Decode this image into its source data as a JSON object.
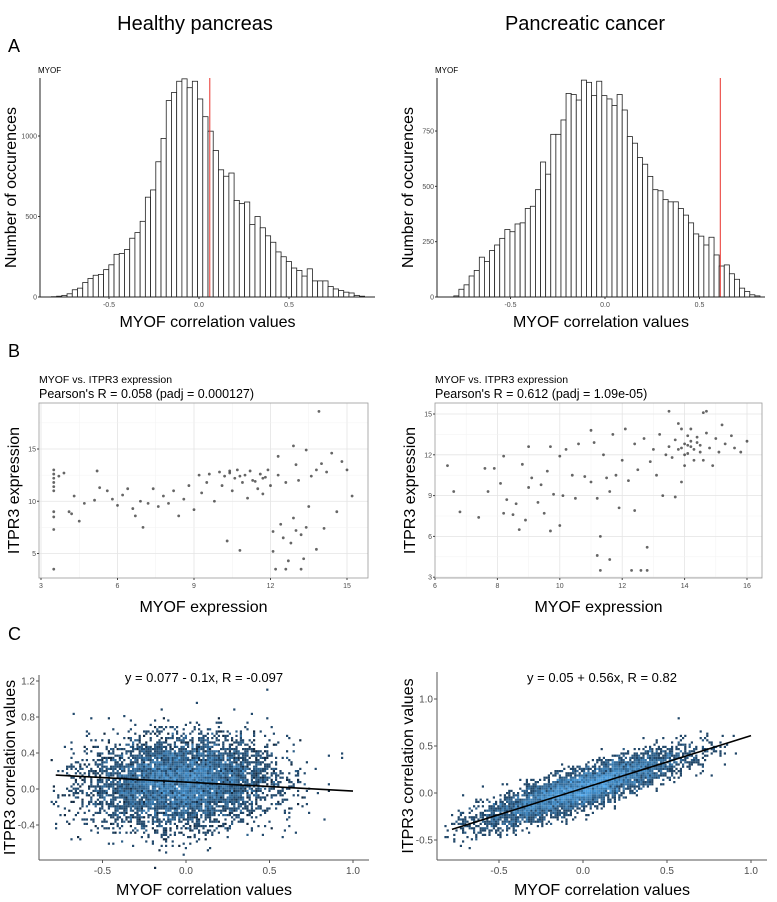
{
  "figure": {
    "panel_labels": [
      "A",
      "B",
      "C"
    ],
    "column_titles": [
      "Healthy pancreas",
      "Pancreatic cancer"
    ]
  },
  "chart_data": [
    {
      "id": "hist_healthy",
      "type": "bar",
      "subtype": "histogram",
      "title": "MYOF",
      "xlabel": "MYOF correlation values",
      "ylabel": "Number of occurences",
      "bin_start": -0.82,
      "bin_width": 0.029,
      "counts": [
        2,
        5,
        10,
        20,
        45,
        55,
        90,
        115,
        135,
        140,
        170,
        200,
        265,
        270,
        295,
        365,
        400,
        470,
        620,
        665,
        840,
        985,
        1220,
        1270,
        1340,
        1355,
        1300,
        1340,
        1230,
        1120,
        1030,
        910,
        790,
        750,
        770,
        600,
        580,
        590,
        450,
        500,
        430,
        380,
        340,
        280,
        250,
        220,
        180,
        165,
        130,
        175,
        100,
        100,
        100,
        65,
        50,
        40,
        30,
        25,
        10,
        5
      ],
      "reference_line": {
        "x": 0.06,
        "color": "#e8312a"
      },
      "xticks": [
        -0.5,
        0.0,
        0.5
      ],
      "xtick_labels": [
        "-0.5",
        "0.0",
        "0.5"
      ],
      "yticks": [
        0,
        500,
        1000
      ],
      "ytick_labels": [
        "0",
        "500",
        "1000"
      ],
      "xlim": [
        -0.88,
        0.97
      ],
      "ylim": [
        0,
        1360
      ]
    },
    {
      "id": "hist_cancer",
      "type": "bar",
      "subtype": "histogram",
      "title": "MYOF",
      "xlabel": "MYOF correlation values",
      "ylabel": "Number of occurences",
      "bin_start": -0.8,
      "bin_width": 0.027,
      "counts": [
        5,
        35,
        55,
        95,
        120,
        180,
        160,
        210,
        235,
        265,
        305,
        295,
        330,
        335,
        400,
        410,
        485,
        610,
        555,
        735,
        735,
        800,
        920,
        915,
        890,
        980,
        970,
        910,
        975,
        910,
        895,
        865,
        915,
        845,
        725,
        695,
        630,
        600,
        545,
        485,
        480,
        440,
        430,
        430,
        400,
        370,
        335,
        285,
        275,
        235,
        270,
        190,
        140,
        145,
        105,
        80,
        40,
        25,
        10,
        5
      ],
      "reference_line": {
        "x": 0.61,
        "color": "#e8312a"
      },
      "xticks": [
        -0.5,
        0.0,
        0.5
      ],
      "xtick_labels": [
        "-0.5",
        "0.0",
        "0.5"
      ],
      "yticks": [
        0,
        250,
        500,
        750
      ],
      "ytick_labels": [
        "0",
        "250",
        "500",
        "750"
      ],
      "xlim": [
        -0.88,
        0.88
      ],
      "ylim": [
        0,
        985
      ]
    },
    {
      "id": "scatter_healthy",
      "type": "scatter",
      "title": "MYOF vs. ITPR3 expression",
      "subtitle": "Pearson's R = 0.058 (padj = 0.000127)",
      "xlabel": "MYOF expression",
      "ylabel": "ITPR3 expression",
      "xticks": [
        3,
        6,
        9,
        12,
        15
      ],
      "xtick_labels": [
        "3",
        "6",
        "9",
        "12",
        "15"
      ],
      "yticks": [
        5,
        10,
        15
      ],
      "ytick_labels": [
        "5",
        "10",
        "15"
      ],
      "xlim": [
        2.9,
        15.8
      ],
      "ylim": [
        2.7,
        19.3
      ],
      "points": [
        [
          3.5,
          13
        ],
        [
          3.5,
          12.6
        ],
        [
          3.5,
          12.2
        ],
        [
          3.5,
          11.8
        ],
        [
          3.5,
          11.4
        ],
        [
          3.5,
          11
        ],
        [
          3.5,
          9
        ],
        [
          3.5,
          8.5
        ],
        [
          3.5,
          7.3
        ],
        [
          3.5,
          3.5
        ],
        [
          3.7,
          12.4
        ],
        [
          3.9,
          12.7
        ],
        [
          4.1,
          9
        ],
        [
          4.2,
          8.8
        ],
        [
          4.3,
          10.5
        ],
        [
          4.5,
          8.1
        ],
        [
          4.7,
          9.8
        ],
        [
          5.1,
          10.1
        ],
        [
          5.2,
          12.9
        ],
        [
          5.3,
          11.3
        ],
        [
          5.6,
          11
        ],
        [
          5.8,
          10.2
        ],
        [
          6,
          9.6
        ],
        [
          6.2,
          10.6
        ],
        [
          6.4,
          11.2
        ],
        [
          6.6,
          9.3
        ],
        [
          6.7,
          8.6
        ],
        [
          6.9,
          10
        ],
        [
          7,
          7.5
        ],
        [
          7.2,
          9.8
        ],
        [
          7.4,
          11.2
        ],
        [
          7.6,
          9.5
        ],
        [
          7.8,
          10.5
        ],
        [
          8,
          9.8
        ],
        [
          8.2,
          11
        ],
        [
          8.4,
          8.6
        ],
        [
          8.6,
          10.2
        ],
        [
          8.8,
          11.5
        ],
        [
          9,
          9.2
        ],
        [
          9.2,
          12.5
        ],
        [
          9.3,
          10.8
        ],
        [
          9.5,
          11.8
        ],
        [
          9.6,
          12.6
        ],
        [
          9.8,
          10
        ],
        [
          10,
          12.8
        ],
        [
          10.1,
          11.5
        ],
        [
          10.2,
          12.4
        ],
        [
          10.3,
          6.2
        ],
        [
          10.4,
          12.9
        ],
        [
          10.5,
          11
        ],
        [
          10.6,
          12.2
        ],
        [
          10.7,
          13
        ],
        [
          10.8,
          5.3
        ],
        [
          10.9,
          11.8
        ],
        [
          11,
          12.5
        ],
        [
          11.1,
          10.3
        ],
        [
          11.2,
          12.9
        ],
        [
          11.3,
          12
        ],
        [
          11.5,
          11.2
        ],
        [
          11.6,
          12.6
        ],
        [
          11.7,
          10.7
        ],
        [
          11.8,
          12.3
        ],
        [
          11.9,
          13
        ],
        [
          12,
          11.5
        ],
        [
          12.1,
          7.1
        ],
        [
          12.1,
          5.2
        ],
        [
          12.2,
          3.5
        ],
        [
          12.3,
          12.5
        ],
        [
          12.4,
          7.8
        ],
        [
          12.5,
          6.5
        ],
        [
          12.6,
          11.8
        ],
        [
          12.7,
          4.3
        ],
        [
          12.8,
          6
        ],
        [
          12.9,
          8.4
        ],
        [
          13,
          7.2
        ],
        [
          13,
          13.5
        ],
        [
          13.1,
          12
        ],
        [
          13.2,
          6.8
        ],
        [
          13.3,
          4.5
        ],
        [
          13.4,
          7.5
        ],
        [
          13.5,
          9.5
        ],
        [
          13.6,
          12.4
        ],
        [
          13.8,
          13
        ],
        [
          13.9,
          18.6
        ],
        [
          14,
          13.6
        ],
        [
          14.1,
          7.4
        ],
        [
          14.2,
          12.8
        ],
        [
          14.4,
          14.6
        ],
        [
          14.6,
          9
        ],
        [
          14.8,
          13.8
        ],
        [
          15,
          13
        ],
        [
          15.2,
          10.5
        ],
        [
          12.9,
          15.3
        ],
        [
          13.4,
          14.9
        ],
        [
          12.3,
          14.3
        ],
        [
          12.6,
          3.5
        ],
        [
          13.2,
          3.5
        ],
        [
          13.8,
          5.4
        ],
        [
          11.4,
          11.9
        ],
        [
          10.4,
          12.7
        ],
        [
          10.8,
          12.4
        ],
        [
          11.7,
          12.2
        ]
      ]
    },
    {
      "id": "scatter_cancer",
      "type": "scatter",
      "title": "MYOF vs. ITPR3 expression",
      "subtitle": "Pearson's R = 0.612 (padj = 1.09e-05)",
      "xlabel": "MYOF expression",
      "ylabel": "ITPR3 expression",
      "xticks": [
        6,
        8,
        10,
        12,
        14,
        16
      ],
      "xtick_labels": [
        "6",
        "8",
        "10",
        "12",
        "14",
        "16"
      ],
      "yticks": [
        3,
        6,
        9,
        12,
        15
      ],
      "ytick_labels": [
        "3",
        "6",
        "9",
        "12",
        "15"
      ],
      "xlim": [
        6,
        16.5
      ],
      "ylim": [
        2.8,
        15.8
      ],
      "points": [
        [
          6.4,
          11.2
        ],
        [
          6.6,
          9.3
        ],
        [
          6.8,
          7.8
        ],
        [
          7.4,
          7.4
        ],
        [
          7.6,
          11
        ],
        [
          7.7,
          9.3
        ],
        [
          7.9,
          11
        ],
        [
          8.1,
          9.9
        ],
        [
          8.2,
          11.9
        ],
        [
          8.2,
          7.7
        ],
        [
          8.3,
          8.7
        ],
        [
          8.5,
          7.6
        ],
        [
          8.6,
          8.4
        ],
        [
          8.7,
          6.5
        ],
        [
          8.8,
          11.3
        ],
        [
          8.9,
          7.2
        ],
        [
          9,
          9.6
        ],
        [
          9,
          12.6
        ],
        [
          9.1,
          10.3
        ],
        [
          9.3,
          8.5
        ],
        [
          9.4,
          9.8
        ],
        [
          9.5,
          7.7
        ],
        [
          9.6,
          10.8
        ],
        [
          9.7,
          12.6
        ],
        [
          9.7,
          6.4
        ],
        [
          9.8,
          9.1
        ],
        [
          10,
          6.8
        ],
        [
          10,
          11.9
        ],
        [
          10.1,
          9
        ],
        [
          10.2,
          12.4
        ],
        [
          10.4,
          10.5
        ],
        [
          10.5,
          8.8
        ],
        [
          10.6,
          12.8
        ],
        [
          10.8,
          10.4
        ],
        [
          11,
          13.8
        ],
        [
          11,
          10
        ],
        [
          11.1,
          12.9
        ],
        [
          11.2,
          4.6
        ],
        [
          11.2,
          8.8
        ],
        [
          11.3,
          3.5
        ],
        [
          11.3,
          6
        ],
        [
          11.4,
          12
        ],
        [
          11.5,
          10.3
        ],
        [
          11.6,
          4.3
        ],
        [
          11.6,
          9.3
        ],
        [
          11.7,
          13.5
        ],
        [
          11.8,
          10.5
        ],
        [
          11.9,
          8.1
        ],
        [
          12,
          11.6
        ],
        [
          12.1,
          13.9
        ],
        [
          12.2,
          10.1
        ],
        [
          12.3,
          3.5
        ],
        [
          12.4,
          7.9
        ],
        [
          12.4,
          12.8
        ],
        [
          12.5,
          10.9
        ],
        [
          12.6,
          3.5
        ],
        [
          12.7,
          13.2
        ],
        [
          12.8,
          5.2
        ],
        [
          12.8,
          3.5
        ],
        [
          12.9,
          11.5
        ],
        [
          13,
          12.4
        ],
        [
          13.1,
          10.5
        ],
        [
          13.2,
          13.5
        ],
        [
          13.3,
          9
        ],
        [
          13.4,
          12
        ],
        [
          13.5,
          15.2
        ],
        [
          13.5,
          12.6
        ],
        [
          13.6,
          11.8
        ],
        [
          13.7,
          13.1
        ],
        [
          13.7,
          8.9
        ],
        [
          13.8,
          12.4
        ],
        [
          13.9,
          13.9
        ],
        [
          13.9,
          10
        ],
        [
          14,
          12.8
        ],
        [
          14,
          11.2
        ],
        [
          14.1,
          13.4
        ],
        [
          14.1,
          12.1
        ],
        [
          14.2,
          12.6
        ],
        [
          14.2,
          13.9
        ],
        [
          14.3,
          11.6
        ],
        [
          14.4,
          12.9
        ],
        [
          14.4,
          13.3
        ],
        [
          14.5,
          12.2
        ],
        [
          14.6,
          11.6
        ],
        [
          14.7,
          13.6
        ],
        [
          14.7,
          15.2
        ],
        [
          14.8,
          12.5
        ],
        [
          14.9,
          11.2
        ],
        [
          15,
          13.2
        ],
        [
          15.1,
          12.2
        ],
        [
          15.2,
          14.2
        ],
        [
          15.3,
          12.8
        ],
        [
          15.5,
          13.4
        ],
        [
          15.6,
          12.5
        ],
        [
          15.8,
          12.2
        ],
        [
          16,
          13
        ],
        [
          14.6,
          15.1
        ],
        [
          13.8,
          14.3
        ],
        [
          14.3,
          12.4
        ],
        [
          14.1,
          12.7
        ],
        [
          13.9,
          12.5
        ],
        [
          14.5,
          12.7
        ],
        [
          14,
          12
        ],
        [
          14.2,
          13
        ]
      ]
    },
    {
      "id": "density_healthy",
      "type": "heatmap",
      "subtype": "hexbin-density with linear fit",
      "annotation": "y = 0.077 - 0.1x,  R = -0.097",
      "xlabel": "MYOF correlation values",
      "ylabel": "ITPR3 correlation values",
      "fit": {
        "intercept": 0.077,
        "slope": -0.1,
        "r": -0.097,
        "x_range": [
          -0.78,
          1.0
        ]
      },
      "distribution": {
        "x_mean": -0.03,
        "x_sd": 0.27,
        "y_mean": 0.08,
        "y_sd": 0.24
      },
      "xticks": [
        -0.5,
        0.0,
        0.5,
        1.0
      ],
      "xtick_labels": [
        "-0.5",
        "0.0",
        "0.5",
        "1.0"
      ],
      "yticks": [
        -0.4,
        0.0,
        0.4,
        0.8,
        1.2
      ],
      "ytick_labels": [
        "-0.4",
        "0.0",
        "0.4",
        "0.8",
        "1.2"
      ],
      "colors": {
        "low": "#132B43",
        "high": "#56B1F7",
        "fit": "#000000"
      }
    },
    {
      "id": "density_cancer",
      "type": "heatmap",
      "subtype": "hexbin-density with linear fit",
      "annotation": "y = 0.05 + 0.56x,  R = 0.82",
      "xlabel": "MYOF correlation values",
      "ylabel": "ITPR3 correlation values",
      "fit": {
        "intercept": 0.05,
        "slope": 0.56,
        "r": 0.82,
        "x_range": [
          -0.78,
          1.0
        ]
      },
      "distribution": {
        "x_mean": 0.0,
        "x_sd": 0.3,
        "residual_sd": 0.1
      },
      "xticks": [
        -0.5,
        0.0,
        0.5,
        1.0
      ],
      "xtick_labels": [
        "-0.5",
        "0.0",
        "0.5",
        "1.0"
      ],
      "yticks": [
        -0.5,
        0.0,
        0.5,
        1.0
      ],
      "ytick_labels": [
        "-0.5",
        "0.0",
        "0.5",
        "1.0"
      ],
      "colors": {
        "low": "#132B43",
        "high": "#56B1F7",
        "fit": "#000000"
      }
    }
  ]
}
